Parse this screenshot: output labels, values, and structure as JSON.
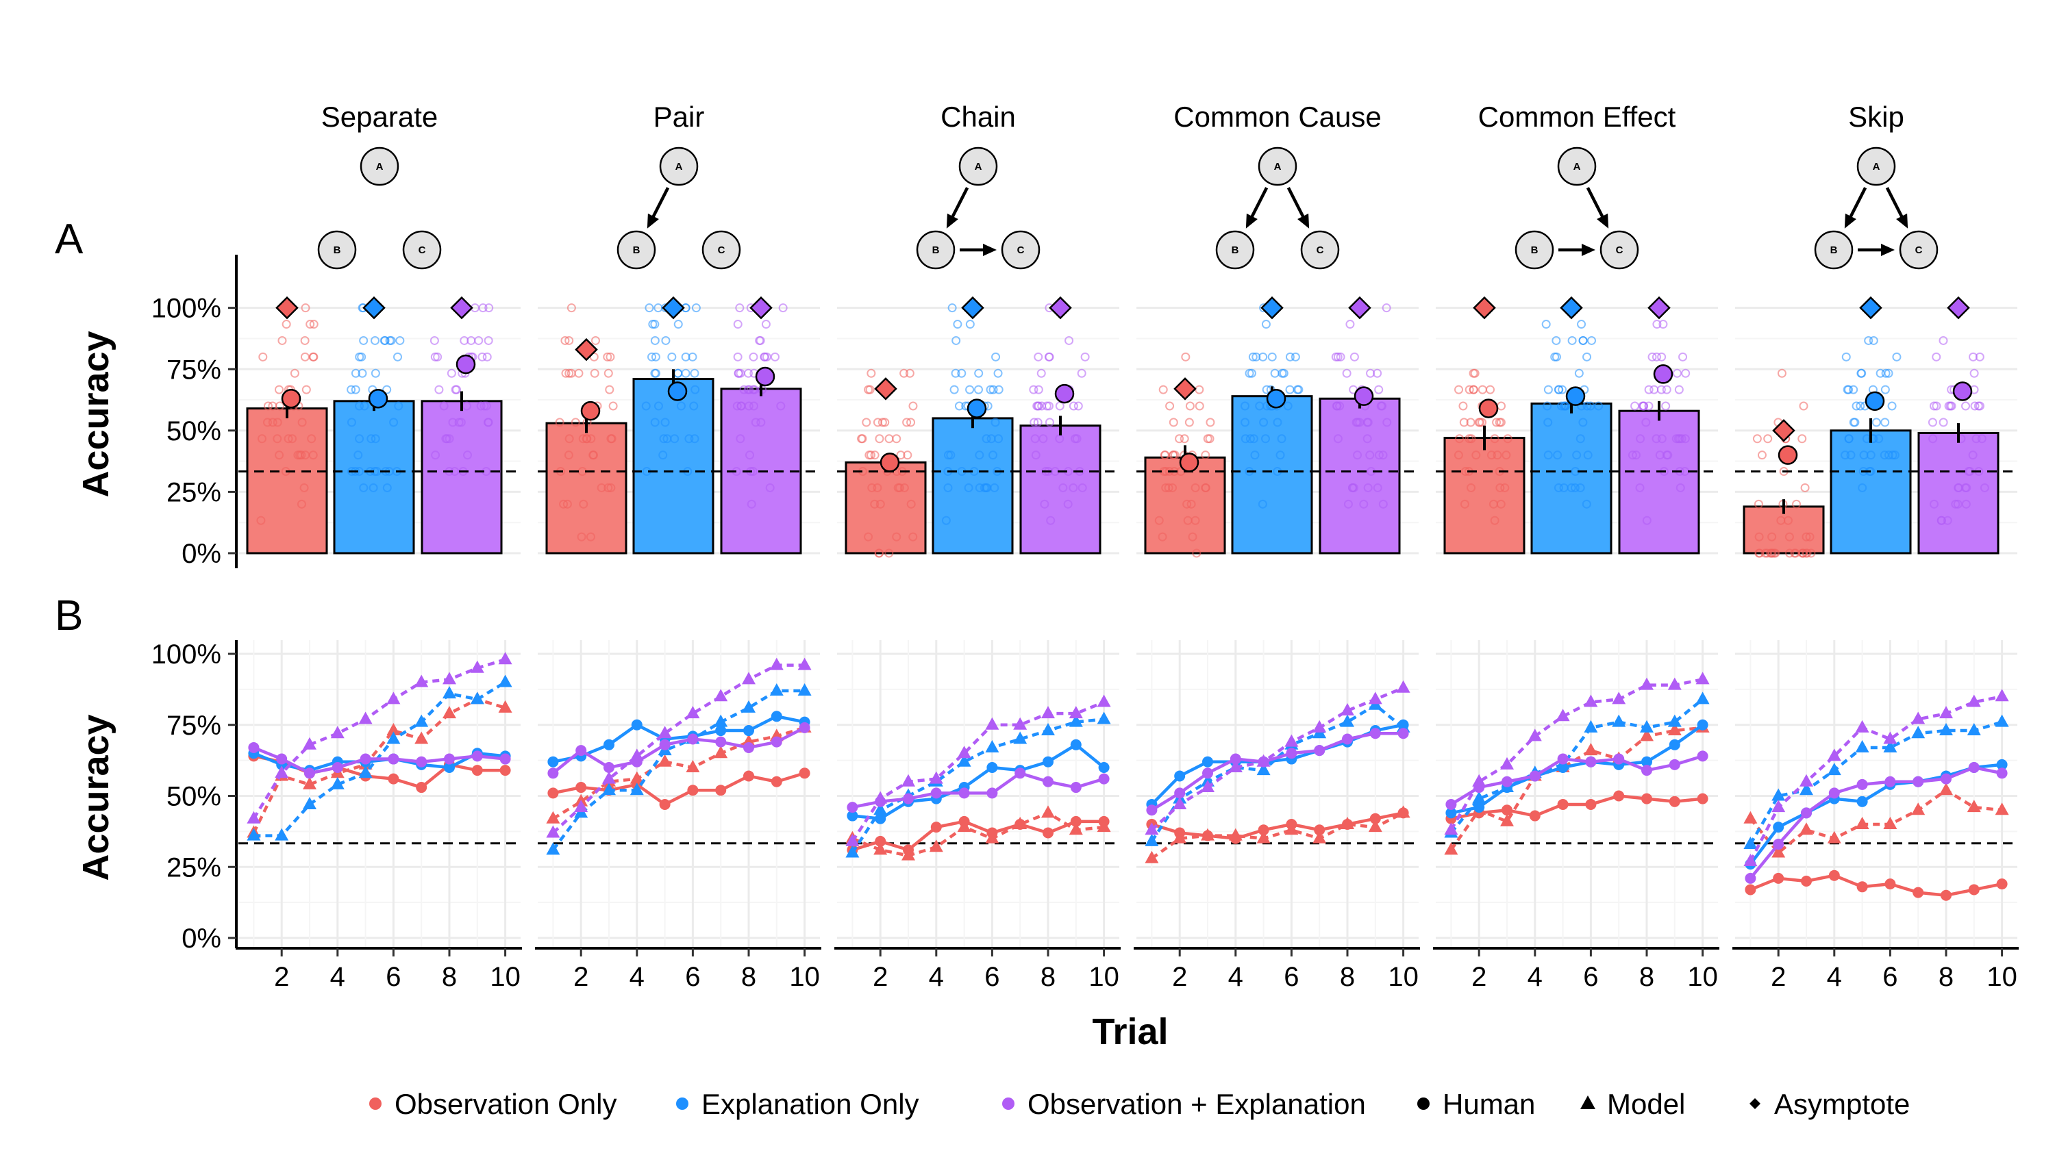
{
  "figure": {
    "panel_a_tag": "A",
    "panel_b_tag": "B",
    "x_axis_title": "Trial",
    "y_axis_title": "Accuracy",
    "facets": [
      "Separate",
      "Pair",
      "Chain",
      "Common Cause",
      "Common Effect",
      "Skip"
    ],
    "y_tick_labels": [
      "0%",
      "25%",
      "50%",
      "75%",
      "100%"
    ],
    "x_tick_labels": [
      "2",
      "4",
      "6",
      "8",
      "10"
    ],
    "node_labels": {
      "A": "A",
      "B": "B",
      "C": "C"
    }
  },
  "legend": {
    "items": [
      {
        "label": "Observation Only",
        "color": "#F0605D",
        "symbol": "point"
      },
      {
        "label": "Explanation Only",
        "color": "#1E90FF",
        "symbol": "point"
      },
      {
        "label": "Observation + Explanation",
        "color": "#B05CF5",
        "symbol": "point"
      },
      {
        "label": "Human",
        "color": "#000000",
        "symbol": "circle"
      },
      {
        "label": "Model",
        "color": "#000000",
        "symbol": "triangle"
      },
      {
        "label": "Asymptote",
        "color": "#000000",
        "symbol": "diamond"
      }
    ]
  },
  "chart_data": [
    {
      "type": "bar",
      "panel": "A",
      "ylabel": "Accuracy",
      "ylim": [
        0,
        1.2
      ],
      "chance_line": 0.333,
      "conditions": [
        "Observation Only",
        "Explanation Only",
        "Observation + Explanation"
      ],
      "colors": {
        "Observation Only": "#F0605D",
        "Explanation Only": "#1E90FF",
        "Observation + Explanation": "#B05CF5"
      },
      "bar_fill_colors": {
        "Observation Only": "#F47F7A",
        "Explanation Only": "#3FA9FF",
        "Observation + Explanation": "#C379FB"
      },
      "facets": [
        {
          "name": "Separate",
          "edges": [],
          "human": [
            0.59,
            0.62,
            0.62
          ],
          "human_se": [
            0.04,
            0.04,
            0.04
          ],
          "model": [
            0.63,
            0.63,
            0.77
          ],
          "asymptote": [
            1.0,
            1.0,
            1.0
          ]
        },
        {
          "name": "Pair",
          "edges": [
            [
              "A",
              "B"
            ]
          ],
          "human": [
            0.53,
            0.71,
            0.67
          ],
          "human_se": [
            0.04,
            0.04,
            0.03
          ],
          "model": [
            0.58,
            0.66,
            0.72
          ],
          "asymptote": [
            0.83,
            1.0,
            1.0
          ]
        },
        {
          "name": "Chain",
          "edges": [
            [
              "A",
              "B"
            ],
            [
              "B",
              "C"
            ]
          ],
          "human": [
            0.37,
            0.55,
            0.52
          ],
          "human_se": [
            0.03,
            0.04,
            0.04
          ],
          "model": [
            0.37,
            0.59,
            0.65
          ],
          "asymptote": [
            0.67,
            1.0,
            1.0
          ]
        },
        {
          "name": "Common Cause",
          "edges": [
            [
              "A",
              "B"
            ],
            [
              "A",
              "C"
            ]
          ],
          "human": [
            0.39,
            0.64,
            0.63
          ],
          "human_se": [
            0.05,
            0.04,
            0.04
          ],
          "model": [
            0.37,
            0.63,
            0.64
          ],
          "asymptote": [
            0.67,
            1.0,
            1.0
          ]
        },
        {
          "name": "Common Effect",
          "edges": [
            [
              "A",
              "C"
            ],
            [
              "B",
              "C"
            ]
          ],
          "human": [
            0.47,
            0.61,
            0.58
          ],
          "human_se": [
            0.05,
            0.04,
            0.04
          ],
          "model": [
            0.59,
            0.64,
            0.73
          ],
          "asymptote": [
            1.0,
            1.0,
            1.0
          ]
        },
        {
          "name": "Skip",
          "edges": [
            [
              "A",
              "B"
            ],
            [
              "A",
              "C"
            ],
            [
              "B",
              "C"
            ]
          ],
          "human": [
            0.19,
            0.5,
            0.49
          ],
          "human_se": [
            0.03,
            0.05,
            0.04
          ],
          "model": [
            0.4,
            0.62,
            0.66
          ],
          "asymptote": [
            0.5,
            1.0,
            1.0
          ]
        }
      ]
    },
    {
      "type": "line",
      "panel": "B",
      "xlabel": "Trial",
      "ylabel": "Accuracy",
      "x": [
        1,
        2,
        3,
        4,
        5,
        6,
        7,
        8,
        9,
        10
      ],
      "xlim": [
        0.5,
        10.5
      ],
      "ylim": [
        0,
        1.0
      ],
      "chance_line": 0.333,
      "facets": [
        {
          "name": "Separate",
          "series": [
            {
              "name": "Observation Only",
              "kind": "Human",
              "values": [
                0.64,
                0.62,
                0.58,
                0.6,
                0.57,
                0.56,
                0.53,
                0.61,
                0.59,
                0.59
              ]
            },
            {
              "name": "Observation Only",
              "kind": "Model",
              "values": [
                0.37,
                0.57,
                0.54,
                0.58,
                0.61,
                0.73,
                0.7,
                0.79,
                0.84,
                0.81
              ]
            },
            {
              "name": "Explanation Only",
              "kind": "Human",
              "values": [
                0.65,
                0.61,
                0.59,
                0.62,
                0.62,
                0.63,
                0.61,
                0.6,
                0.65,
                0.64
              ]
            },
            {
              "name": "Explanation Only",
              "kind": "Model",
              "values": [
                0.36,
                0.36,
                0.47,
                0.54,
                0.58,
                0.7,
                0.76,
                0.86,
                0.84,
                0.9
              ]
            },
            {
              "name": "Observation + Explanation",
              "kind": "Human",
              "values": [
                0.67,
                0.63,
                0.58,
                0.6,
                0.63,
                0.63,
                0.62,
                0.63,
                0.64,
                0.63
              ]
            },
            {
              "name": "Observation + Explanation",
              "kind": "Model",
              "values": [
                0.42,
                0.58,
                0.68,
                0.72,
                0.77,
                0.84,
                0.9,
                0.91,
                0.95,
                0.98
              ]
            }
          ]
        },
        {
          "name": "Pair",
          "series": [
            {
              "name": "Observation Only",
              "kind": "Human",
              "values": [
                0.51,
                0.53,
                0.52,
                0.54,
                0.47,
                0.52,
                0.52,
                0.57,
                0.55,
                0.58
              ]
            },
            {
              "name": "Observation Only",
              "kind": "Model",
              "values": [
                0.42,
                0.48,
                0.55,
                0.56,
                0.62,
                0.6,
                0.65,
                0.69,
                0.71,
                0.74
              ]
            },
            {
              "name": "Explanation Only",
              "kind": "Human",
              "values": [
                0.62,
                0.64,
                0.68,
                0.75,
                0.7,
                0.71,
                0.73,
                0.73,
                0.78,
                0.76
              ]
            },
            {
              "name": "Explanation Only",
              "kind": "Model",
              "values": [
                0.31,
                0.44,
                0.52,
                0.52,
                0.66,
                0.7,
                0.76,
                0.81,
                0.87,
                0.87
              ]
            },
            {
              "name": "Observation + Explanation",
              "kind": "Human",
              "values": [
                0.58,
                0.66,
                0.6,
                0.62,
                0.68,
                0.7,
                0.69,
                0.67,
                0.69,
                0.74
              ]
            },
            {
              "name": "Observation + Explanation",
              "kind": "Model",
              "values": [
                0.37,
                0.46,
                0.56,
                0.64,
                0.72,
                0.79,
                0.85,
                0.91,
                0.96,
                0.96
              ]
            }
          ]
        },
        {
          "name": "Chain",
          "series": [
            {
              "name": "Observation Only",
              "kind": "Human",
              "values": [
                0.31,
                0.34,
                0.31,
                0.39,
                0.41,
                0.37,
                0.4,
                0.37,
                0.41,
                0.41
              ]
            },
            {
              "name": "Observation Only",
              "kind": "Model",
              "values": [
                0.35,
                0.31,
                0.29,
                0.32,
                0.39,
                0.35,
                0.4,
                0.44,
                0.38,
                0.39
              ]
            },
            {
              "name": "Explanation Only",
              "kind": "Human",
              "values": [
                0.43,
                0.42,
                0.48,
                0.49,
                0.53,
                0.6,
                0.59,
                0.62,
                0.68,
                0.6
              ]
            },
            {
              "name": "Explanation Only",
              "kind": "Model",
              "values": [
                0.3,
                0.45,
                0.5,
                0.55,
                0.62,
                0.67,
                0.7,
                0.73,
                0.76,
                0.77
              ]
            },
            {
              "name": "Observation + Explanation",
              "kind": "Human",
              "values": [
                0.46,
                0.48,
                0.49,
                0.51,
                0.51,
                0.51,
                0.58,
                0.55,
                0.53,
                0.56
              ]
            },
            {
              "name": "Observation + Explanation",
              "kind": "Model",
              "values": [
                0.34,
                0.49,
                0.55,
                0.56,
                0.65,
                0.75,
                0.75,
                0.79,
                0.79,
                0.83
              ]
            }
          ]
        },
        {
          "name": "Common Cause",
          "series": [
            {
              "name": "Observation Only",
              "kind": "Human",
              "values": [
                0.4,
                0.37,
                0.36,
                0.35,
                0.38,
                0.4,
                0.38,
                0.4,
                0.42,
                0.44
              ]
            },
            {
              "name": "Observation Only",
              "kind": "Model",
              "values": [
                0.28,
                0.35,
                0.36,
                0.36,
                0.35,
                0.38,
                0.35,
                0.4,
                0.39,
                0.44
              ]
            },
            {
              "name": "Explanation Only",
              "kind": "Human",
              "values": [
                0.47,
                0.57,
                0.62,
                0.62,
                0.62,
                0.63,
                0.66,
                0.69,
                0.73,
                0.75
              ]
            },
            {
              "name": "Explanation Only",
              "kind": "Model",
              "values": [
                0.34,
                0.49,
                0.55,
                0.6,
                0.59,
                0.68,
                0.72,
                0.76,
                0.82,
                0.74
              ]
            },
            {
              "name": "Observation + Explanation",
              "kind": "Human",
              "values": [
                0.45,
                0.51,
                0.58,
                0.63,
                0.62,
                0.65,
                0.66,
                0.7,
                0.72,
                0.72
              ]
            },
            {
              "name": "Observation + Explanation",
              "kind": "Model",
              "values": [
                0.38,
                0.47,
                0.53,
                0.6,
                0.62,
                0.69,
                0.74,
                0.8,
                0.84,
                0.88
              ]
            }
          ]
        },
        {
          "name": "Common Effect",
          "series": [
            {
              "name": "Observation Only",
              "kind": "Human",
              "values": [
                0.42,
                0.44,
                0.45,
                0.43,
                0.47,
                0.47,
                0.5,
                0.49,
                0.48,
                0.49
              ]
            },
            {
              "name": "Observation Only",
              "kind": "Model",
              "values": [
                0.31,
                0.45,
                0.41,
                0.57,
                0.6,
                0.66,
                0.63,
                0.71,
                0.73,
                0.74
              ]
            },
            {
              "name": "Explanation Only",
              "kind": "Human",
              "values": [
                0.44,
                0.46,
                0.53,
                0.57,
                0.6,
                0.62,
                0.61,
                0.62,
                0.68,
                0.75
              ]
            },
            {
              "name": "Explanation Only",
              "kind": "Model",
              "values": [
                0.37,
                0.49,
                0.53,
                0.58,
                0.61,
                0.74,
                0.76,
                0.74,
                0.76,
                0.84
              ]
            },
            {
              "name": "Observation + Explanation",
              "kind": "Human",
              "values": [
                0.47,
                0.53,
                0.55,
                0.57,
                0.63,
                0.62,
                0.63,
                0.59,
                0.61,
                0.64
              ]
            },
            {
              "name": "Observation + Explanation",
              "kind": "Model",
              "values": [
                0.38,
                0.55,
                0.61,
                0.71,
                0.78,
                0.83,
                0.84,
                0.89,
                0.89,
                0.91
              ]
            }
          ]
        },
        {
          "name": "Skip",
          "series": [
            {
              "name": "Observation Only",
              "kind": "Human",
              "values": [
                0.17,
                0.21,
                0.2,
                0.22,
                0.18,
                0.19,
                0.16,
                0.15,
                0.17,
                0.19
              ]
            },
            {
              "name": "Observation Only",
              "kind": "Model",
              "values": [
                0.42,
                0.3,
                0.38,
                0.35,
                0.4,
                0.4,
                0.45,
                0.52,
                0.46,
                0.45
              ]
            },
            {
              "name": "Explanation Only",
              "kind": "Human",
              "values": [
                0.26,
                0.39,
                0.44,
                0.49,
                0.48,
                0.54,
                0.55,
                0.57,
                0.6,
                0.61
              ]
            },
            {
              "name": "Explanation Only",
              "kind": "Model",
              "values": [
                0.33,
                0.5,
                0.52,
                0.59,
                0.67,
                0.67,
                0.72,
                0.73,
                0.73,
                0.76
              ]
            },
            {
              "name": "Observation + Explanation",
              "kind": "Human",
              "values": [
                0.21,
                0.33,
                0.44,
                0.51,
                0.54,
                0.55,
                0.55,
                0.56,
                0.6,
                0.58
              ]
            },
            {
              "name": "Observation + Explanation",
              "kind": "Model",
              "values": [
                0.27,
                0.46,
                0.55,
                0.64,
                0.74,
                0.7,
                0.77,
                0.79,
                0.83,
                0.85
              ]
            }
          ]
        }
      ]
    }
  ]
}
